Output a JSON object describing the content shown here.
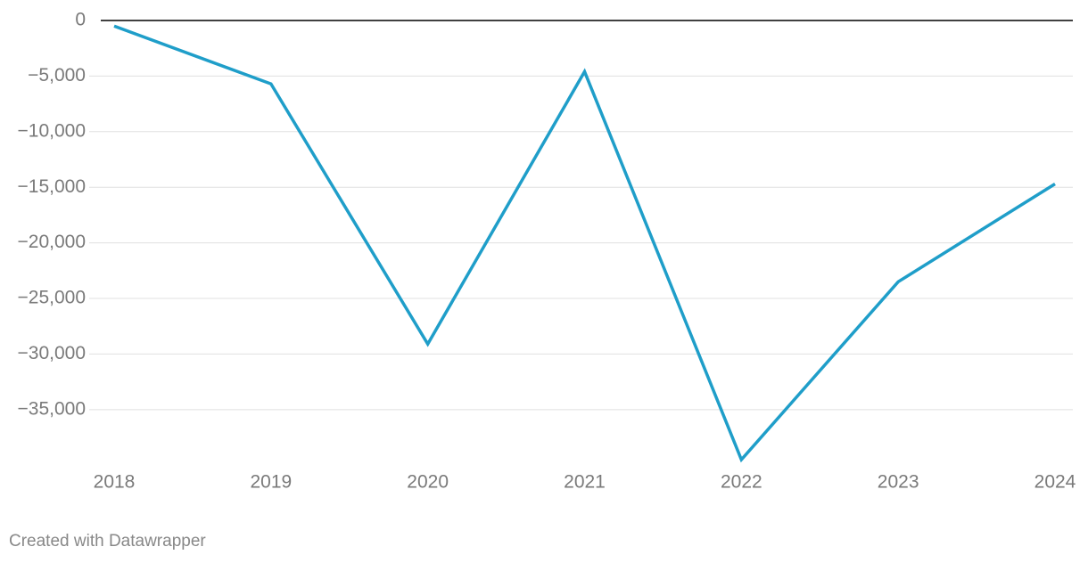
{
  "chart_data": {
    "type": "line",
    "categories": [
      "2018",
      "2019",
      "2020",
      "2021",
      "2022",
      "2023",
      "2024"
    ],
    "values": [
      -500,
      -5700,
      -29100,
      -4600,
      -39500,
      -23500,
      -14700
    ],
    "color": "#1f9ec9",
    "ylim": [
      -39500,
      0
    ],
    "yticks": [
      0,
      {
        "value": -5000,
        "label": "−5,000"
      },
      {
        "value": -10000,
        "label": "−10,000"
      },
      {
        "value": -15000,
        "label": "−15,000"
      },
      {
        "value": -20000,
        "label": "−20,000"
      },
      {
        "value": -25000,
        "label": "−25,000"
      },
      {
        "value": -30000,
        "label": "−30,000"
      },
      {
        "value": -35000,
        "label": "−35,000"
      }
    ],
    "grid": true,
    "footer": "Created with Datawrapper"
  }
}
